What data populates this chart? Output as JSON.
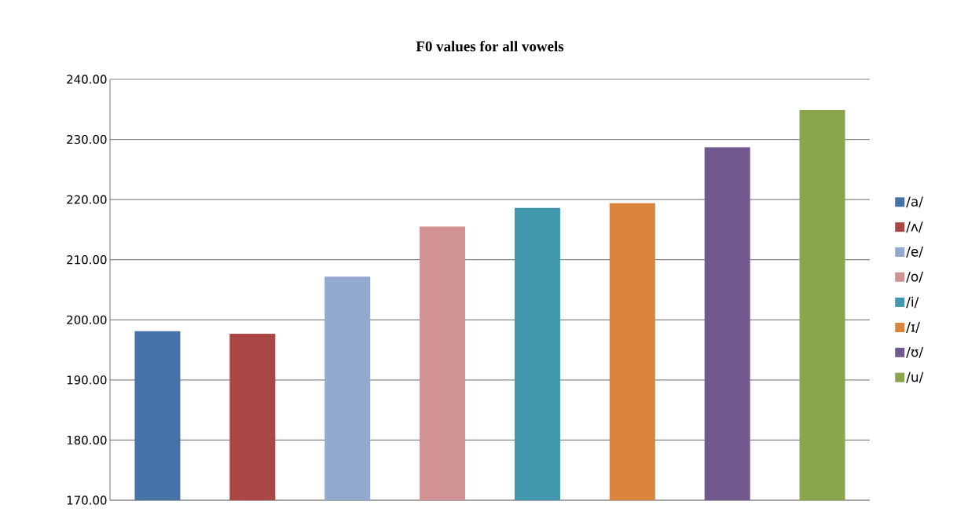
{
  "chart_data": {
    "type": "bar",
    "title": "F0 values for all vowels",
    "categories": [
      null,
      null,
      null,
      null,
      null,
      null,
      null,
      null
    ],
    "series": [
      {
        "name": "/a/",
        "color": "#4572a7",
        "values": [
          198.1,
          null,
          null,
          null,
          null,
          null,
          null,
          null
        ]
      },
      {
        "name": "/ʌ/",
        "color": "#aa4643",
        "values": [
          null,
          197.7,
          null,
          null,
          null,
          null,
          null,
          null
        ]
      },
      {
        "name": "/e/",
        "color": "#93a9d0",
        "values": [
          null,
          null,
          207.2,
          null,
          null,
          null,
          null,
          null
        ]
      },
      {
        "name": "/o/",
        "color": "#d09293",
        "values": [
          null,
          null,
          null,
          215.5,
          null,
          null,
          null,
          null
        ]
      },
      {
        "name": "/i/",
        "color": "#4198af",
        "values": [
          null,
          null,
          null,
          null,
          218.6,
          null,
          null,
          null
        ]
      },
      {
        "name": "/ɪ/",
        "color": "#db843d",
        "values": [
          null,
          null,
          null,
          null,
          null,
          219.4,
          null,
          null
        ]
      },
      {
        "name": "/ʊ/",
        "color": "#71588f",
        "values": [
          null,
          null,
          null,
          null,
          null,
          null,
          228.7,
          null
        ]
      },
      {
        "name": "/u/",
        "color": "#89a54e",
        "values": [
          null,
          null,
          null,
          null,
          null,
          null,
          null,
          234.9
        ]
      }
    ],
    "ylim": [
      170,
      240
    ],
    "yticks": [
      {
        "value": 170,
        "label": "170.00"
      },
      {
        "value": 180,
        "label": "180.00"
      },
      {
        "value": 190,
        "label": "190.00"
      },
      {
        "value": 200,
        "label": "200.00"
      },
      {
        "value": 210,
        "label": "210.00"
      },
      {
        "value": 220,
        "label": "220.00"
      },
      {
        "value": 230,
        "label": "230.00"
      },
      {
        "value": 240,
        "label": "240.00"
      }
    ],
    "grid": "y",
    "legend": "right"
  }
}
